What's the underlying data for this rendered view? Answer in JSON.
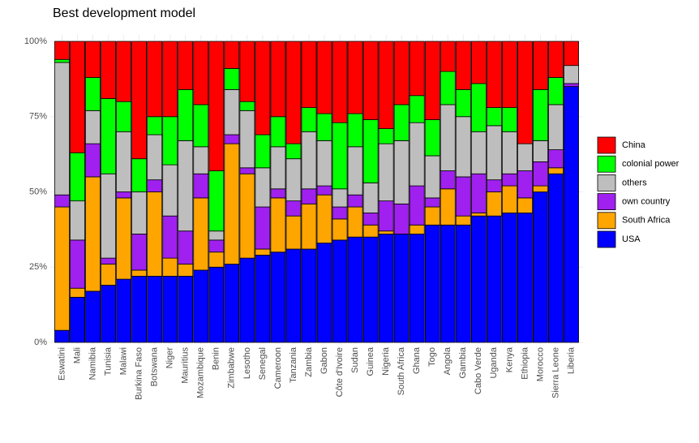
{
  "chart_data": {
    "type": "stacked_bar_percent",
    "title": "Best development model",
    "categories": [
      "Eswatini",
      "Mali",
      "Namibia",
      "Tunisia",
      "Malawi",
      "Burkina Faso",
      "Botswana",
      "Niger",
      "Mauritius",
      "Mozambique",
      "Benin",
      "Zimbabwe",
      "Lesotho",
      "Senegal",
      "Cameroon",
      "Tanzania",
      "Zambia",
      "Gabon",
      "Côte d'Ivoire",
      "Sudan",
      "Guinea",
      "Nigeria",
      "South Africa",
      "Ghana",
      "Togo",
      "Angola",
      "Gambia",
      "Cabo Verde",
      "Uganda",
      "Kenya",
      "Ethiopia",
      "Morocco",
      "Sierra Leone",
      "Liberia"
    ],
    "series": [
      {
        "name": "USA",
        "color": "#0000ff",
        "values": [
          4,
          15,
          17,
          19,
          21,
          22,
          22,
          22,
          22,
          24,
          25,
          26,
          28,
          29,
          30,
          31,
          31,
          33,
          34,
          35,
          35,
          36,
          36,
          36,
          39,
          39,
          39,
          42,
          42,
          43,
          43,
          50,
          56,
          85
        ]
      },
      {
        "name": "South Africa",
        "color": "#ffa500",
        "values": [
          41,
          3,
          38,
          7,
          27,
          2,
          28,
          6,
          4,
          24,
          5,
          40,
          28,
          2,
          18,
          11,
          15,
          16,
          7,
          10,
          4,
          1,
          0,
          3,
          6,
          12,
          3,
          1,
          8,
          9,
          5,
          2,
          2,
          0
        ]
      },
      {
        "name": "own country",
        "color": "#a020f0",
        "values": [
          4,
          16,
          11,
          2,
          2,
          12,
          4,
          14,
          11,
          8,
          4,
          3,
          2,
          14,
          3,
          5,
          5,
          3,
          4,
          4,
          4,
          10,
          10,
          13,
          3,
          6,
          13,
          13,
          4,
          4,
          9,
          8,
          6,
          1
        ]
      },
      {
        "name": "others",
        "color": "#bebebe",
        "values": [
          44,
          13,
          11,
          28,
          20,
          14,
          15,
          17,
          30,
          9,
          3,
          15,
          19,
          13,
          14,
          14,
          19,
          15,
          6,
          16,
          10,
          19,
          21,
          21,
          14,
          22,
          20,
          14,
          18,
          14,
          9,
          7,
          15,
          6
        ]
      },
      {
        "name": "colonial power",
        "color": "#00ff00",
        "values": [
          1,
          16,
          11,
          25,
          10,
          11,
          6,
          16,
          17,
          14,
          20,
          7,
          3,
          11,
          10,
          5,
          8,
          9,
          22,
          11,
          21,
          5,
          12,
          9,
          12,
          11,
          9,
          16,
          6,
          8,
          0,
          17,
          9,
          0
        ]
      },
      {
        "name": "China",
        "color": "#ff0000",
        "values": [
          6,
          37,
          12,
          19,
          20,
          39,
          25,
          25,
          16,
          21,
          43,
          9,
          20,
          31,
          25,
          34,
          22,
          24,
          27,
          24,
          26,
          29,
          21,
          18,
          26,
          10,
          16,
          14,
          22,
          22,
          34,
          16,
          12,
          8
        ]
      }
    ],
    "ylim": [
      0,
      100
    ],
    "yticks": [
      {
        "value": 0,
        "label": "0%"
      },
      {
        "value": 25,
        "label": "25%"
      },
      {
        "value": 50,
        "label": "50%"
      },
      {
        "value": 75,
        "label": "75%"
      },
      {
        "value": 100,
        "label": "100%"
      }
    ],
    "grid": true
  }
}
